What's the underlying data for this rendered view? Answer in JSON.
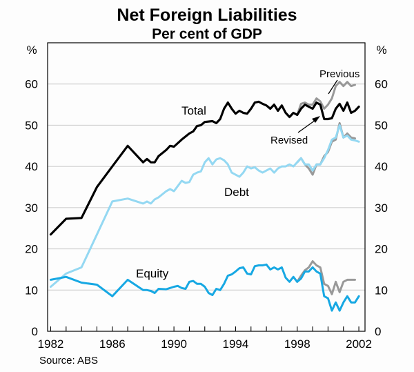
{
  "chart_data": {
    "type": "line",
    "title": "Net Foreign Liabilities",
    "subtitle": "Per cent of GDP",
    "ylabel_left": "%",
    "ylabel_right": "%",
    "ylim": [
      0,
      70
    ],
    "xlim": [
      1981.8,
      2002.4
    ],
    "yticks": [
      0,
      10,
      20,
      30,
      40,
      50,
      60
    ],
    "xticks": [
      1982,
      1986,
      1990,
      1994,
      1998,
      2002
    ],
    "source": "Source: ABS",
    "annotations": {
      "total": "Total",
      "debt": "Debt",
      "equity": "Equity",
      "previous": "Previous",
      "revised": "Revised"
    },
    "series": [
      {
        "name": "Total",
        "color": "#000000",
        "points": [
          [
            1982.0,
            23.5
          ],
          [
            1983.0,
            27.3
          ],
          [
            1984.0,
            27.5
          ],
          [
            1985.0,
            35.0
          ],
          [
            1986.0,
            40.0
          ],
          [
            1987.0,
            45.0
          ],
          [
            1988.0,
            41.0
          ],
          [
            1988.25,
            41.8
          ],
          [
            1988.5,
            41.0
          ],
          [
            1988.75,
            41.0
          ],
          [
            1989.0,
            42.5
          ],
          [
            1989.5,
            44.0
          ],
          [
            1989.75,
            45.0
          ],
          [
            1990.0,
            44.8
          ],
          [
            1990.5,
            46.5
          ],
          [
            1991.0,
            48.0
          ],
          [
            1991.25,
            48.5
          ],
          [
            1991.5,
            49.8
          ],
          [
            1991.75,
            50.0
          ],
          [
            1992.0,
            50.8
          ],
          [
            1992.5,
            51.0
          ],
          [
            1992.75,
            50.5
          ],
          [
            1993.0,
            51.5
          ],
          [
            1993.25,
            54.0
          ],
          [
            1993.5,
            55.5
          ],
          [
            1993.75,
            54.0
          ],
          [
            1994.0,
            52.8
          ],
          [
            1994.25,
            53.5
          ],
          [
            1994.5,
            53.0
          ],
          [
            1994.75,
            52.8
          ],
          [
            1995.0,
            54.0
          ],
          [
            1995.25,
            55.5
          ],
          [
            1995.5,
            55.7
          ],
          [
            1995.75,
            55.2
          ],
          [
            1996.0,
            54.8
          ],
          [
            1996.25,
            54.0
          ],
          [
            1996.5,
            55.0
          ],
          [
            1996.75,
            53.5
          ],
          [
            1997.0,
            54.8
          ],
          [
            1997.25,
            53.0
          ],
          [
            1997.5,
            52.0
          ],
          [
            1997.75,
            53.0
          ],
          [
            1998.0,
            52.5
          ],
          [
            1998.25,
            54.0
          ],
          [
            1998.5,
            55.0
          ],
          [
            1998.75,
            54.5
          ],
          [
            1999.0,
            54.0
          ],
          [
            1999.25,
            55.5
          ],
          [
            1999.5,
            55.0
          ],
          [
            1999.75,
            51.5
          ],
          [
            2000.0,
            51.5
          ],
          [
            2000.25,
            51.7
          ],
          [
            2000.5,
            54.0
          ],
          [
            2000.75,
            55.2
          ],
          [
            2001.0,
            53.5
          ],
          [
            2001.25,
            55.5
          ],
          [
            2001.5,
            53.0
          ],
          [
            2001.75,
            53.5
          ],
          [
            2002.0,
            54.5
          ]
        ]
      },
      {
        "name": "Total (Previous)",
        "color": "#999999",
        "points": [
          [
            1998.0,
            52.5
          ],
          [
            1998.25,
            55.2
          ],
          [
            1998.5,
            55.5
          ],
          [
            1998.75,
            55.0
          ],
          [
            1999.0,
            55.0
          ],
          [
            1999.25,
            56.5
          ],
          [
            1999.5,
            55.8
          ],
          [
            1999.75,
            54.0
          ],
          [
            2000.0,
            55.0
          ],
          [
            2000.25,
            56.5
          ],
          [
            2000.5,
            59.5
          ],
          [
            2000.75,
            60.5
          ],
          [
            2001.0,
            59.5
          ],
          [
            2001.25,
            60.5
          ],
          [
            2001.5,
            59.5
          ],
          [
            2001.75,
            59.8
          ]
        ]
      },
      {
        "name": "Debt",
        "color": "#94d8f2",
        "points": [
          [
            1982.0,
            10.8
          ],
          [
            1983.0,
            14.0
          ],
          [
            1984.0,
            15.5
          ],
          [
            1985.0,
            23.5
          ],
          [
            1986.0,
            31.5
          ],
          [
            1987.0,
            32.2
          ],
          [
            1988.0,
            31.0
          ],
          [
            1988.25,
            31.5
          ],
          [
            1988.5,
            31.0
          ],
          [
            1988.75,
            32.0
          ],
          [
            1989.0,
            32.5
          ],
          [
            1989.5,
            34.0
          ],
          [
            1989.75,
            34.5
          ],
          [
            1990.0,
            34.0
          ],
          [
            1990.5,
            36.5
          ],
          [
            1990.75,
            36.0
          ],
          [
            1991.0,
            36.2
          ],
          [
            1991.25,
            38.0
          ],
          [
            1991.5,
            38.5
          ],
          [
            1991.75,
            38.8
          ],
          [
            1992.0,
            41.0
          ],
          [
            1992.25,
            42.0
          ],
          [
            1992.5,
            40.5
          ],
          [
            1992.75,
            41.7
          ],
          [
            1993.0,
            42.0
          ],
          [
            1993.25,
            41.5
          ],
          [
            1993.5,
            40.5
          ],
          [
            1993.75,
            38.5
          ],
          [
            1994.0,
            38.0
          ],
          [
            1994.25,
            37.5
          ],
          [
            1994.5,
            38.5
          ],
          [
            1994.75,
            40.0
          ],
          [
            1995.0,
            39.5
          ],
          [
            1995.25,
            39.8
          ],
          [
            1995.5,
            39.0
          ],
          [
            1995.75,
            38.5
          ],
          [
            1996.0,
            39.0
          ],
          [
            1996.25,
            39.5
          ],
          [
            1996.5,
            38.5
          ],
          [
            1996.75,
            39.5
          ],
          [
            1997.0,
            40.0
          ],
          [
            1997.25,
            40.0
          ],
          [
            1997.5,
            40.5
          ],
          [
            1997.75,
            40.0
          ],
          [
            1998.0,
            41.0
          ],
          [
            1998.25,
            42.0
          ],
          [
            1998.5,
            40.5
          ],
          [
            1998.75,
            40.5
          ],
          [
            1999.0,
            39.0
          ],
          [
            1999.25,
            40.5
          ],
          [
            1999.5,
            40.5
          ],
          [
            1999.75,
            42.0
          ],
          [
            2000.0,
            44.0
          ],
          [
            2000.25,
            46.5
          ],
          [
            2000.5,
            47.0
          ],
          [
            2000.75,
            50.0
          ],
          [
            2001.0,
            47.0
          ],
          [
            2001.25,
            47.5
          ],
          [
            2001.5,
            46.5
          ],
          [
            2001.75,
            46.3
          ],
          [
            2002.0,
            46.0
          ]
        ]
      },
      {
        "name": "Debt (Previous)",
        "color": "#999999",
        "points": [
          [
            1998.0,
            41.0
          ],
          [
            1998.25,
            42.0
          ],
          [
            1998.5,
            40.5
          ],
          [
            1998.75,
            39.5
          ],
          [
            1999.0,
            38.0
          ],
          [
            1999.25,
            40.5
          ],
          [
            1999.5,
            40.5
          ],
          [
            1999.75,
            42.5
          ],
          [
            2000.0,
            43.5
          ],
          [
            2000.25,
            46.0
          ],
          [
            2000.5,
            46.5
          ],
          [
            2000.75,
            50.5
          ],
          [
            2001.0,
            47.0
          ],
          [
            2001.25,
            48.0
          ],
          [
            2001.5,
            47.0
          ],
          [
            2001.75,
            46.8
          ]
        ]
      },
      {
        "name": "Equity",
        "color": "#17a8e3",
        "points": [
          [
            1982.0,
            12.5
          ],
          [
            1983.0,
            13.2
          ],
          [
            1984.0,
            11.8
          ],
          [
            1985.0,
            11.3
          ],
          [
            1986.0,
            8.5
          ],
          [
            1987.0,
            12.5
          ],
          [
            1988.0,
            10.0
          ],
          [
            1988.25,
            10.0
          ],
          [
            1988.5,
            9.8
          ],
          [
            1988.75,
            9.3
          ],
          [
            1989.0,
            10.3
          ],
          [
            1989.5,
            10.2
          ],
          [
            1989.75,
            10.5
          ],
          [
            1990.0,
            10.8
          ],
          [
            1990.25,
            11.0
          ],
          [
            1990.5,
            10.5
          ],
          [
            1990.75,
            10.3
          ],
          [
            1991.0,
            12.0
          ],
          [
            1991.25,
            12.2
          ],
          [
            1991.5,
            11.5
          ],
          [
            1991.75,
            11.5
          ],
          [
            1992.0,
            10.8
          ],
          [
            1992.25,
            9.3
          ],
          [
            1992.5,
            8.8
          ],
          [
            1992.75,
            10.3
          ],
          [
            1993.0,
            10.0
          ],
          [
            1993.25,
            11.5
          ],
          [
            1993.5,
            13.5
          ],
          [
            1993.75,
            13.8
          ],
          [
            1994.0,
            14.5
          ],
          [
            1994.25,
            15.3
          ],
          [
            1994.5,
            15.5
          ],
          [
            1994.75,
            14.0
          ],
          [
            1995.0,
            13.8
          ],
          [
            1995.25,
            15.8
          ],
          [
            1995.5,
            16.0
          ],
          [
            1995.75,
            16.0
          ],
          [
            1996.0,
            16.2
          ],
          [
            1996.25,
            15.0
          ],
          [
            1996.5,
            15.5
          ],
          [
            1996.75,
            15.0
          ],
          [
            1997.0,
            15.5
          ],
          [
            1997.25,
            13.0
          ],
          [
            1997.5,
            12.0
          ],
          [
            1997.75,
            13.2
          ],
          [
            1998.0,
            12.0
          ],
          [
            1998.25,
            12.8
          ],
          [
            1998.5,
            14.5
          ],
          [
            1998.75,
            14.5
          ],
          [
            1999.0,
            15.5
          ],
          [
            1999.25,
            14.5
          ],
          [
            1999.5,
            14.0
          ],
          [
            1999.75,
            8.5
          ],
          [
            2000.0,
            8.0
          ],
          [
            2000.25,
            5.0
          ],
          [
            2000.5,
            7.0
          ],
          [
            2000.75,
            5.0
          ],
          [
            2001.0,
            7.0
          ],
          [
            2001.25,
            8.5
          ],
          [
            2001.5,
            7.0
          ],
          [
            2001.75,
            7.0
          ],
          [
            2002.0,
            8.5
          ]
        ]
      },
      {
        "name": "Equity (Previous)",
        "color": "#999999",
        "points": [
          [
            1998.0,
            12.0
          ],
          [
            1998.25,
            13.5
          ],
          [
            1998.5,
            14.8
          ],
          [
            1998.75,
            15.5
          ],
          [
            1999.0,
            17.0
          ],
          [
            1999.25,
            16.0
          ],
          [
            1999.5,
            15.5
          ],
          [
            1999.75,
            11.5
          ],
          [
            2000.0,
            11.0
          ],
          [
            2000.25,
            9.0
          ],
          [
            2000.5,
            12.0
          ],
          [
            2000.75,
            9.5
          ],
          [
            2001.0,
            12.0
          ],
          [
            2001.25,
            12.5
          ],
          [
            2001.5,
            12.5
          ],
          [
            2001.75,
            12.5
          ]
        ]
      }
    ]
  }
}
